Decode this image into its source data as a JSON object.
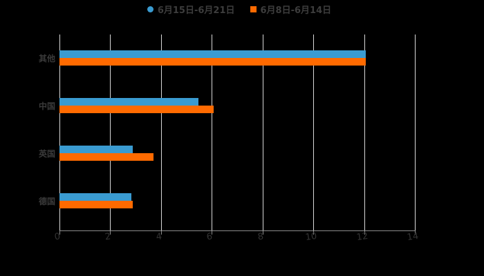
{
  "chart_data": {
    "type": "bar",
    "orientation": "horizontal",
    "title": "",
    "categories": [
      "其他",
      "中国",
      "英国",
      "德国"
    ],
    "series": [
      {
        "name": "6月15日-6月21日",
        "color": "#3a9bd1",
        "values": [
          12.07,
          5.48,
          2.89,
          2.83
        ]
      },
      {
        "name": "6月8日-6月14日",
        "color": "#ff6a00",
        "values": [
          12.07,
          6.07,
          3.71,
          2.89
        ]
      }
    ],
    "xlabel": "",
    "ylabel": "",
    "xlim": [
      0,
      14
    ],
    "xticks": [
      "0",
      "2",
      "4",
      "6",
      "8",
      "10",
      "12",
      "14"
    ],
    "grid": true,
    "legend_position": "top"
  },
  "legend": [
    {
      "label": "6月15日-6月21日",
      "color": "#3a9bd1",
      "marker": "circle"
    },
    {
      "label": "6月8日-6月14日",
      "color": "#ff6a00",
      "marker": "square"
    }
  ],
  "colors": {
    "background": "#000000",
    "series1": "#3a9bd1",
    "series2": "#ff6a00",
    "grid": "#d9d9d9"
  }
}
